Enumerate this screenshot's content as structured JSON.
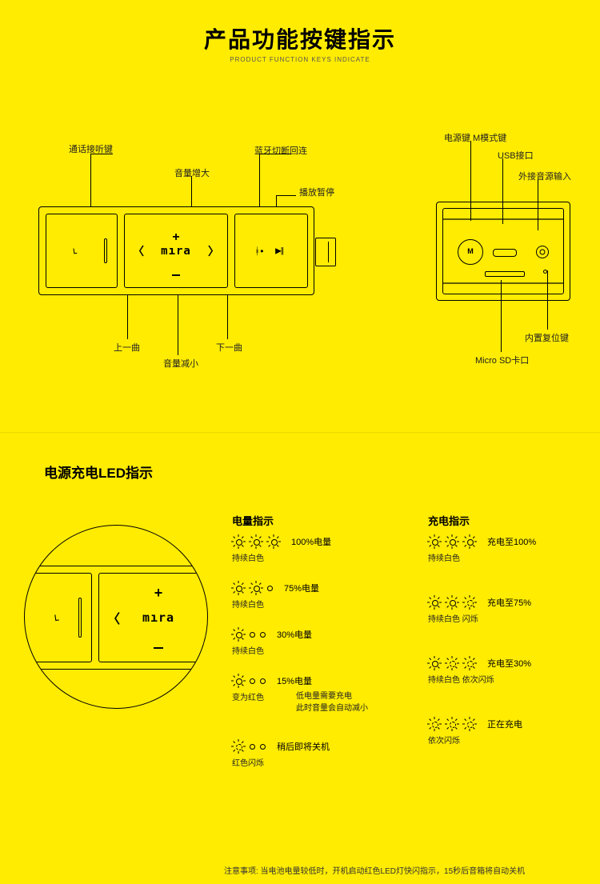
{
  "colors": {
    "background": "#ffec00",
    "line": "#000000",
    "text": "#000000",
    "subtext": "#333333"
  },
  "header": {
    "title": "产品功能按键指示",
    "subtitle": "PRODUCT FUNCTION KEYS INDICATE"
  },
  "labels_top": {
    "call": "通话接听键",
    "vol_up": "音量增大",
    "bt": "蓝牙切断回连",
    "play": "播放暂停",
    "prev": "上一曲",
    "vol_down": "音量减小",
    "next": "下一曲",
    "brand": "mıra"
  },
  "labels_side": {
    "power": "电源键 M模式键",
    "usb": "USB接口",
    "aux": "外接音源输入",
    "reset": "内置复位键",
    "sd": "Micro SD卡口"
  },
  "section2": {
    "title": "电源充电LED指示",
    "col1_head": "电量指示",
    "col2_head": "充电指示",
    "brand": "mıra",
    "battery": [
      {
        "pattern": [
          1,
          1,
          1
        ],
        "label": "100%电量",
        "sub": "持续白色"
      },
      {
        "pattern": [
          1,
          1,
          0
        ],
        "label": "75%电量",
        "sub": "持续白色"
      },
      {
        "pattern": [
          1,
          0,
          0
        ],
        "label": "30%电量",
        "sub": "持续白色"
      },
      {
        "pattern": [
          1,
          0,
          0
        ],
        "label": "15%电量",
        "sub": "变为红色",
        "extra": "低电量需要充电\n此时音量会自动减小"
      },
      {
        "pattern": [
          2,
          0,
          0
        ],
        "label": "稍后即将关机",
        "sub": "红色闪烁"
      }
    ],
    "charge": [
      {
        "pattern": [
          1,
          1,
          1
        ],
        "label": "充电至100%",
        "sub": "持续白色"
      },
      {
        "pattern": [
          1,
          1,
          2
        ],
        "label": "充电至75%",
        "sub": "持续白色  闪烁"
      },
      {
        "pattern": [
          1,
          2,
          2
        ],
        "label": "充电至30%",
        "sub": "持续白色  依次闪烁"
      },
      {
        "pattern": [
          2,
          2,
          2
        ],
        "label": "正在充电",
        "sub": "依次闪烁"
      }
    ],
    "footer": "注意事项: 当电池电量较低时，开机启动红色LED灯快闪指示，15秒后音箱将自动关机"
  }
}
